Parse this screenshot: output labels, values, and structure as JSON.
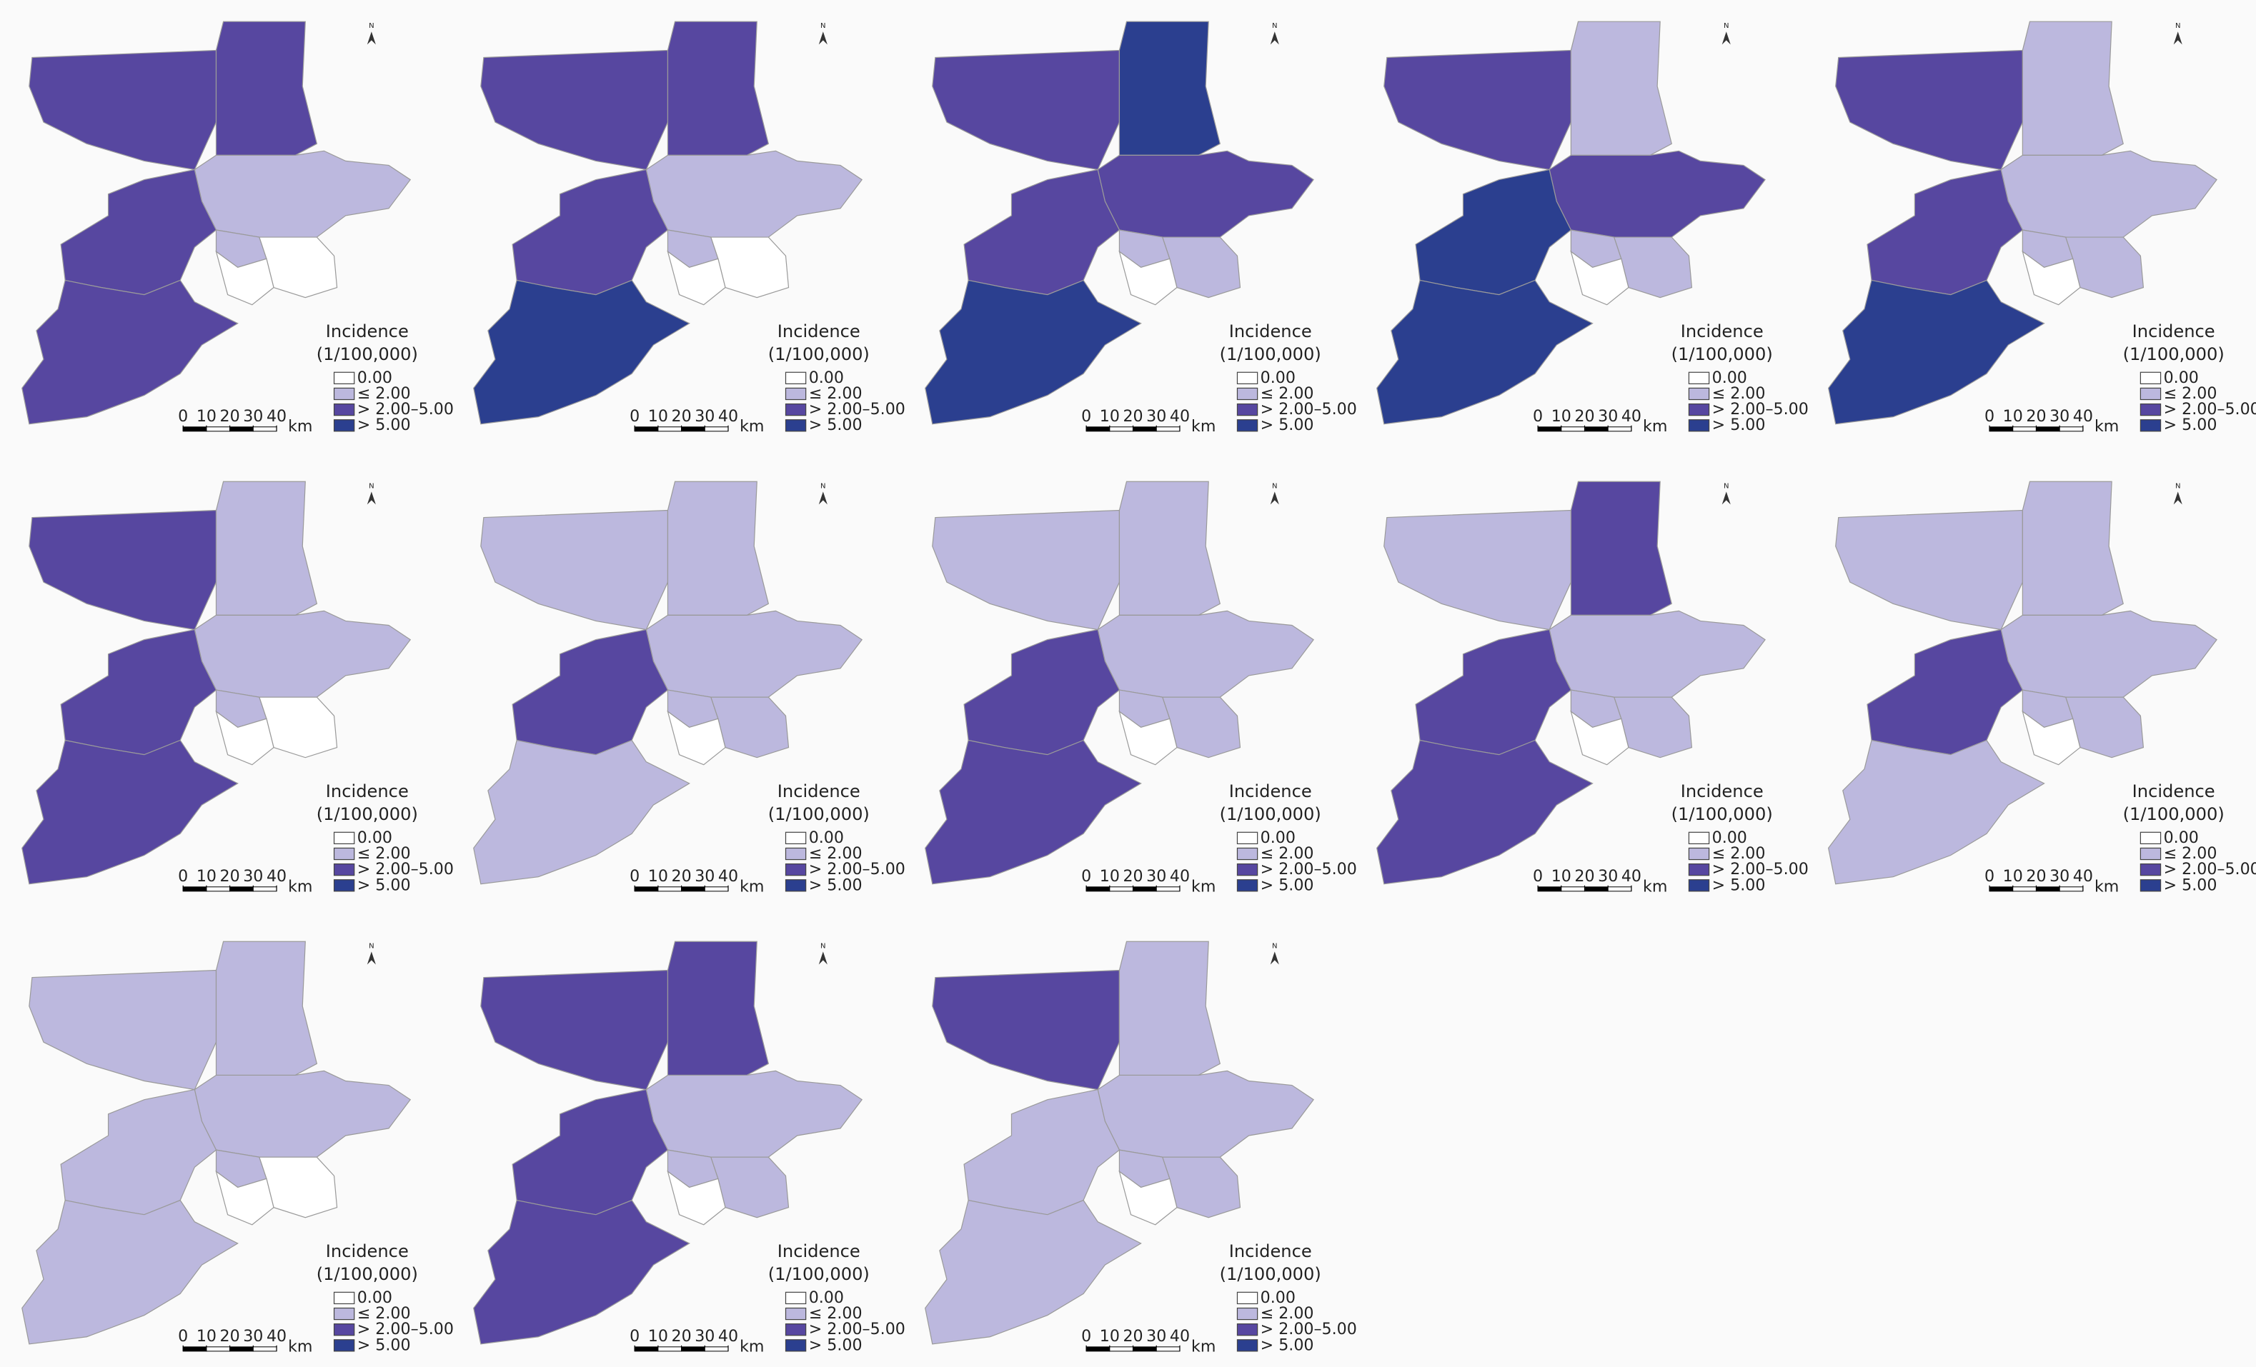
{
  "legend": {
    "title": "Incidence",
    "subtitle": "(1/100,000)",
    "items": [
      {
        "label": "0.00",
        "color": "#ffffff"
      },
      {
        "label": "≤ 2.00",
        "color": "#bcb8de"
      },
      {
        "label": "> 2.00–5.00",
        "color": "#5747a0"
      },
      {
        "label": "> 5.00",
        "color": "#2b3f8f"
      }
    ]
  },
  "scalebar": {
    "ticks": [
      0,
      10,
      20,
      30,
      40
    ],
    "unit": "km"
  },
  "north_label": "N",
  "panels": [
    {
      "fills": [
        "#5747a0",
        "#5747a0",
        "#bcb8de",
        "#5747a0",
        "#5747a0",
        "#bcb8de",
        "#ffffff",
        "#ffffff"
      ]
    },
    {
      "fills": [
        "#5747a0",
        "#5747a0",
        "#bcb8de",
        "#5747a0",
        "#2b3f8f",
        "#bcb8de",
        "#ffffff",
        "#ffffff"
      ]
    },
    {
      "fills": [
        "#5747a0",
        "#2b3f8f",
        "#5747a0",
        "#5747a0",
        "#2b3f8f",
        "#bcb8de",
        "#bcb8de",
        "#ffffff"
      ]
    },
    {
      "fills": [
        "#5747a0",
        "#bcb8de",
        "#5747a0",
        "#2b3f8f",
        "#2b3f8f",
        "#bcb8de",
        "#bcb8de",
        "#ffffff"
      ]
    },
    {
      "fills": [
        "#5747a0",
        "#bcb8de",
        "#bcb8de",
        "#5747a0",
        "#2b3f8f",
        "#bcb8de",
        "#bcb8de",
        "#ffffff"
      ]
    },
    {
      "fills": [
        "#5747a0",
        "#bcb8de",
        "#bcb8de",
        "#5747a0",
        "#5747a0",
        "#bcb8de",
        "#ffffff",
        "#ffffff"
      ]
    },
    {
      "fills": [
        "#bcb8de",
        "#bcb8de",
        "#bcb8de",
        "#5747a0",
        "#bcb8de",
        "#bcb8de",
        "#bcb8de",
        "#ffffff"
      ]
    },
    {
      "fills": [
        "#bcb8de",
        "#bcb8de",
        "#bcb8de",
        "#5747a0",
        "#5747a0",
        "#bcb8de",
        "#bcb8de",
        "#ffffff"
      ]
    },
    {
      "fills": [
        "#bcb8de",
        "#5747a0",
        "#bcb8de",
        "#5747a0",
        "#5747a0",
        "#bcb8de",
        "#bcb8de",
        "#ffffff"
      ]
    },
    {
      "fills": [
        "#bcb8de",
        "#bcb8de",
        "#bcb8de",
        "#5747a0",
        "#bcb8de",
        "#bcb8de",
        "#bcb8de",
        "#ffffff"
      ]
    },
    {
      "fills": [
        "#bcb8de",
        "#bcb8de",
        "#bcb8de",
        "#bcb8de",
        "#bcb8de",
        "#bcb8de",
        "#ffffff",
        "#ffffff"
      ]
    },
    {
      "fills": [
        "#5747a0",
        "#5747a0",
        "#bcb8de",
        "#5747a0",
        "#5747a0",
        "#bcb8de",
        "#bcb8de",
        "#ffffff"
      ]
    },
    {
      "fills": [
        "#5747a0",
        "#bcb8de",
        "#bcb8de",
        "#bcb8de",
        "#bcb8de",
        "#bcb8de",
        "#bcb8de",
        "#ffffff"
      ]
    }
  ]
}
